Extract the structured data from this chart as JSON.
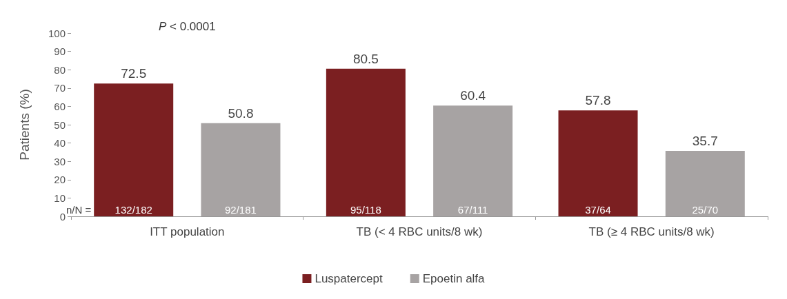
{
  "chart_data": {
    "type": "bar",
    "ylabel": "Patients (%)",
    "categories": [
      "ITT population",
      "TB (< 4 RBC units/8 wk)",
      "TB (≥ 4 RBC units/8 wk)"
    ],
    "series": [
      {
        "name": "Luspatercept",
        "color": "#7b1f21",
        "values": [
          72.5,
          80.5,
          57.8
        ]
      },
      {
        "name": "Epoetin alfa",
        "color": "#a7a3a3",
        "values": [
          50.8,
          60.4,
          35.7
        ]
      }
    ],
    "ylim": [
      0,
      100
    ],
    "yticks": [
      0,
      10,
      20,
      30,
      40,
      50,
      60,
      70,
      80,
      90,
      100
    ],
    "grid": false,
    "legend": "bottom",
    "data_labels": true,
    "annotations": [
      "P < 0.0001",
      "n/N =",
      "132/182",
      "92/181",
      "95/118",
      "67/111",
      "37/64",
      "25/70"
    ]
  }
}
